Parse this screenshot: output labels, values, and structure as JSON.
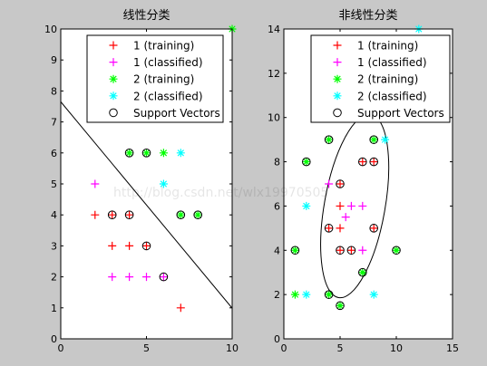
{
  "figure": {
    "background": "#c8c8c8"
  },
  "chart_data": [
    {
      "type": "scatter",
      "title": "线性分类",
      "xlabel": "",
      "ylabel": "",
      "xlim": [
        0,
        10
      ],
      "ylim": [
        0,
        10
      ],
      "xticks": [
        "0",
        "5",
        "10"
      ],
      "yticks": [
        "0",
        "1",
        "2",
        "3",
        "4",
        "5",
        "6",
        "7",
        "8",
        "9",
        "10"
      ],
      "grid": false,
      "legend_position": "top-right",
      "series": [
        {
          "name": "1 (training)",
          "marker": "plus",
          "color": "#ff0000",
          "points": [
            [
              2,
              4
            ],
            [
              3,
              3
            ],
            [
              4,
              3
            ],
            [
              4,
              4
            ],
            [
              5,
              3
            ],
            [
              3,
              4
            ],
            [
              7,
              1
            ]
          ]
        },
        {
          "name": "1 (classified)",
          "marker": "plus",
          "color": "#ff00ff",
          "points": [
            [
              2,
              5
            ],
            [
              3,
              2
            ],
            [
              4,
              2
            ],
            [
              5,
              2
            ],
            [
              6,
              2
            ]
          ]
        },
        {
          "name": "2 (training)",
          "marker": "star",
          "color": "#00ff00",
          "points": [
            [
              4,
              6
            ],
            [
              5,
              6
            ],
            [
              6,
              6
            ],
            [
              7,
              4
            ],
            [
              8,
              4
            ],
            [
              10,
              10
            ]
          ]
        },
        {
          "name": "2 (classified)",
          "marker": "star",
          "color": "#00ffff",
          "points": [
            [
              6,
              5
            ],
            [
              7,
              6
            ]
          ]
        },
        {
          "name": "Support Vectors",
          "marker": "circle",
          "color": "#000000",
          "points": [
            [
              3,
              4
            ],
            [
              4,
              4
            ],
            [
              5,
              3
            ],
            [
              6,
              2
            ],
            [
              4,
              6
            ],
            [
              5,
              6
            ],
            [
              7,
              4
            ],
            [
              8,
              4
            ]
          ]
        }
      ],
      "boundary": {
        "type": "line",
        "points": [
          [
            0,
            7.65
          ],
          [
            10,
            0.99
          ]
        ]
      }
    },
    {
      "type": "scatter",
      "title": "非线性分类",
      "xlabel": "",
      "ylabel": "",
      "xlim": [
        0,
        15
      ],
      "ylim": [
        0,
        14
      ],
      "xticks": [
        "0",
        "5",
        "10",
        "15"
      ],
      "yticks": [
        "0",
        "2",
        "4",
        "6",
        "8",
        "10",
        "12",
        "14"
      ],
      "grid": false,
      "legend_position": "top-right",
      "series": [
        {
          "name": "1 (training)",
          "marker": "plus",
          "color": "#ff0000",
          "points": [
            [
              4,
              5
            ],
            [
              5,
              5
            ],
            [
              5,
              6
            ],
            [
              6,
              4
            ],
            [
              5,
              4
            ],
            [
              7,
              8
            ],
            [
              8,
              8
            ],
            [
              8,
              5
            ],
            [
              5,
              7
            ]
          ]
        },
        {
          "name": "1 (classified)",
          "marker": "plus",
          "color": "#ff00ff",
          "points": [
            [
              4,
              7
            ],
            [
              5.5,
              5.5
            ],
            [
              6,
              6
            ],
            [
              7,
              6
            ],
            [
              7,
              4
            ]
          ]
        },
        {
          "name": "2 (training)",
          "marker": "star",
          "color": "#00ff00",
          "points": [
            [
              1,
              2
            ],
            [
              1,
              4
            ],
            [
              2,
              8
            ],
            [
              4,
              9
            ],
            [
              4,
              2
            ],
            [
              5,
              1.5
            ],
            [
              7,
              3
            ],
            [
              8,
              9
            ],
            [
              10,
              4
            ]
          ]
        },
        {
          "name": "2 (classified)",
          "marker": "star",
          "color": "#00ffff",
          "points": [
            [
              2,
              6
            ],
            [
              2,
              2
            ],
            [
              8,
              2
            ],
            [
              9,
              9
            ],
            [
              12,
              14
            ]
          ]
        },
        {
          "name": "Support Vectors",
          "marker": "circle",
          "color": "#000000",
          "points": [
            [
              1,
              4
            ],
            [
              2,
              8
            ],
            [
              4,
              9
            ],
            [
              4,
              5
            ],
            [
              5,
              7
            ],
            [
              5,
              4
            ],
            [
              4,
              2
            ],
            [
              5,
              1.5
            ],
            [
              6,
              4
            ],
            [
              7,
              3
            ],
            [
              7,
              8
            ],
            [
              8,
              8
            ],
            [
              8,
              5
            ],
            [
              8,
              9
            ],
            [
              10,
              4
            ]
          ]
        }
      ],
      "boundary": {
        "type": "ellipse",
        "center": [
          6.3,
          6.0
        ],
        "radius": [
          2.7,
          4.2
        ],
        "rotation_deg": -10
      }
    }
  ],
  "watermark": {
    "text": "http://blog.csdn.net/wlx19970505"
  }
}
